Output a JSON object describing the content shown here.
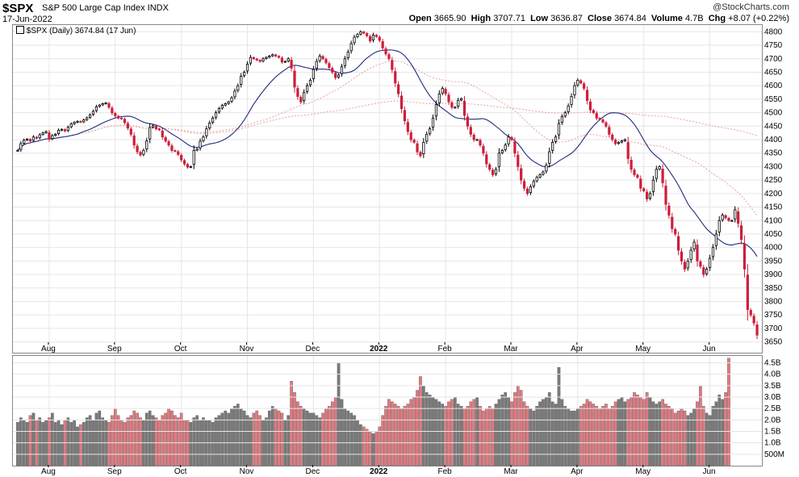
{
  "header": {
    "ticker": "$SPX",
    "description": "S&P 500 Large Cap Index INDX",
    "date": "17-Jun-2022",
    "brand": "@StockCharts.com",
    "open_label": "Open",
    "open": "3665.90",
    "high_label": "High",
    "high": "3707.71",
    "low_label": "Low",
    "low": "3636.87",
    "close_label": "Close",
    "close": "3674.84",
    "volume_label": "Volume",
    "volume": "4.7B",
    "chg_label": "Chg",
    "chg": "+8.07 (+0.22%)"
  },
  "legend": {
    "text": "$SPX (Daily) 3674.84 (17 Jun)"
  },
  "colors": {
    "up": "#ffffff",
    "down": "#cc1f3c",
    "vol_up": "#7a7a7a",
    "vol_down": "#e07a80",
    "ma_short": "#1f2a80",
    "ma_long": "#e8a0a0",
    "grid": "#e6e6e6"
  },
  "chart_data": {
    "type": "line",
    "x_tick_labels": [
      "Aug",
      "Sep",
      "Oct",
      "Nov",
      "Dec",
      "2022",
      "Feb",
      "Mar",
      "Apr",
      "May",
      "Jun"
    ],
    "price_axis": {
      "ylim": [
        3610,
        4825
      ],
      "ticks": [
        3650,
        3700,
        3750,
        3800,
        3850,
        3900,
        3950,
        4000,
        4050,
        4100,
        4150,
        4200,
        4250,
        4300,
        4350,
        4400,
        4450,
        4500,
        4550,
        4600,
        4650,
        4700,
        4750,
        4800
      ]
    },
    "volume_axis": {
      "ylim": [
        0,
        4.8
      ],
      "ticks": [
        0.5,
        1.0,
        1.5,
        2.0,
        2.5,
        3.0,
        3.5,
        4.0,
        4.5
      ],
      "tick_labels": [
        "500M",
        "1.0B",
        "1.5B",
        "2.0B",
        "2.5B",
        "3.0B",
        "3.5B",
        "4.0B",
        "4.5B"
      ]
    },
    "month_start_index": [
      10,
      31,
      52,
      73,
      94,
      115,
      136,
      157,
      178,
      199,
      220
    ],
    "series": [
      {
        "name": "",
        "values": [
          4360,
          4385,
          4398,
          4402,
          4395,
          4410,
          4405,
          4418,
          4425,
          4430,
          4402,
          4415,
          4420,
          4435,
          4438,
          4432,
          4446,
          4458,
          4464,
          4468,
          4465,
          4473,
          4481,
          4492,
          4505,
          4522,
          4528,
          4533,
          4536,
          4520,
          4499,
          4488,
          4480,
          4478,
          4463,
          4443,
          4420,
          4380,
          4355,
          4343,
          4360,
          4395,
          4445,
          4452,
          4440,
          4436,
          4410,
          4395,
          4380,
          4360,
          4357,
          4345,
          4325,
          4310,
          4298,
          4300,
          4360,
          4365,
          4394,
          4410,
          4440,
          4462,
          4480,
          4500,
          4515,
          4527,
          4533,
          4540,
          4555,
          4580,
          4600,
          4635,
          4650,
          4680,
          4705,
          4700,
          4695,
          4690,
          4700,
          4705,
          4710,
          4715,
          4710,
          4705,
          4688,
          4690,
          4700,
          4665,
          4595,
          4560,
          4540,
          4575,
          4600,
          4620,
          4660,
          4690,
          4710,
          4700,
          4685,
          4667,
          4650,
          4630,
          4640,
          4670,
          4700,
          4725,
          4756,
          4780,
          4790,
          4800,
          4795,
          4785,
          4766,
          4788,
          4782,
          4768,
          4740,
          4718,
          4700,
          4660,
          4610,
          4570,
          4515,
          4470,
          4430,
          4400,
          4390,
          4355,
          4340,
          4390,
          4420,
          4440,
          4480,
          4530,
          4570,
          4590,
          4570,
          4540,
          4520,
          4520,
          4546,
          4552,
          4490,
          4450,
          4420,
          4400,
          4400,
          4380,
          4350,
          4310,
          4290,
          4270,
          4290,
          4350,
          4360,
          4380,
          4410,
          4400,
          4350,
          4300,
          4250,
          4220,
          4200,
          4225,
          4245,
          4260,
          4270,
          4280,
          4305,
          4355,
          4390,
          4410,
          4460,
          4485,
          4500,
          4525,
          4560,
          4600,
          4620,
          4610,
          4590,
          4545,
          4510,
          4500,
          4480,
          4475,
          4465,
          4450,
          4420,
          4400,
          4385,
          4390,
          4395,
          4400,
          4330,
          4290,
          4270,
          4260,
          4220,
          4210,
          4180,
          4200,
          4250,
          4290,
          4300,
          4240,
          4160,
          4120,
          4070,
          4050,
          3990,
          3950,
          3920,
          3950,
          3990,
          4020,
          3950,
          3930,
          3900,
          3920,
          3960,
          4000,
          4050,
          4100,
          4120,
          4110,
          4100,
          4100,
          4140,
          4090,
          4030,
          3920,
          3770,
          3750,
          3720,
          3675
        ]
      },
      {
        "name": "",
        "values": [
          1.9,
          2.1,
          2.0,
          1.9,
          2.2,
          2.3,
          2.0,
          2.1,
          1.9,
          2.0,
          2.1,
          2.3,
          1.9,
          2.0,
          1.8,
          2.0,
          2.1,
          1.9,
          2.0,
          1.7,
          1.8,
          1.9,
          2.1,
          2.2,
          2.0,
          2.3,
          2.4,
          2.1,
          2.0,
          1.9,
          2.2,
          2.5,
          2.2,
          2.0,
          1.9,
          2.1,
          2.2,
          2.4,
          2.3,
          2.1,
          2.0,
          2.3,
          2.4,
          2.2,
          2.1,
          2.0,
          2.2,
          2.3,
          2.5,
          2.4,
          2.2,
          2.1,
          2.3,
          2.0,
          2.0,
          1.9,
          2.1,
          2.2,
          2.0,
          2.1,
          2.0,
          2.0,
          1.9,
          2.1,
          2.2,
          2.3,
          2.4,
          2.3,
          2.5,
          2.6,
          2.7,
          2.5,
          2.4,
          2.2,
          2.1,
          2.3,
          2.4,
          2.2,
          2.0,
          2.1,
          2.4,
          2.6,
          2.5,
          2.4,
          2.3,
          2.0,
          2.2,
          3.7,
          3.2,
          2.8,
          2.6,
          2.5,
          2.4,
          2.3,
          2.3,
          2.2,
          2.1,
          2.3,
          2.5,
          2.6,
          2.8,
          3.0,
          4.5,
          2.9,
          2.5,
          2.4,
          2.3,
          2.2,
          2.0,
          1.8,
          1.7,
          1.6,
          1.5,
          1.4,
          1.5,
          1.7,
          2.2,
          2.6,
          2.9,
          2.8,
          2.7,
          2.6,
          2.5,
          2.6,
          2.7,
          2.9,
          3.0,
          3.3,
          3.9,
          3.5,
          3.2,
          3.1,
          3.0,
          2.9,
          2.8,
          2.7,
          2.6,
          2.8,
          2.9,
          3.0,
          2.7,
          2.6,
          2.5,
          2.6,
          2.8,
          2.9,
          3.0,
          2.6,
          2.4,
          2.5,
          2.6,
          2.5,
          2.7,
          2.9,
          3.1,
          3.2,
          3.0,
          2.8,
          3.2,
          3.5,
          3.3,
          2.8,
          2.6,
          2.5,
          2.4,
          2.6,
          2.8,
          2.9,
          3.0,
          3.2,
          2.8,
          2.7,
          4.3,
          2.9,
          2.6,
          2.5,
          2.4,
          2.4,
          2.5,
          2.6,
          2.7,
          2.9,
          2.8,
          2.7,
          2.6,
          2.5,
          2.6,
          2.7,
          2.5,
          2.6,
          2.8,
          2.9,
          3.0,
          2.8,
          2.9,
          3.0,
          3.2,
          3.1,
          3.0,
          2.9,
          3.2,
          3.0,
          2.8,
          2.7,
          2.8,
          2.9,
          2.7,
          2.6,
          2.5,
          2.3,
          2.4,
          2.5,
          2.4,
          2.2,
          2.3,
          2.5,
          2.8,
          3.5,
          2.6,
          2.3,
          2.2,
          2.6,
          2.8,
          3.1,
          2.9,
          3.2,
          4.7
        ]
      }
    ]
  }
}
